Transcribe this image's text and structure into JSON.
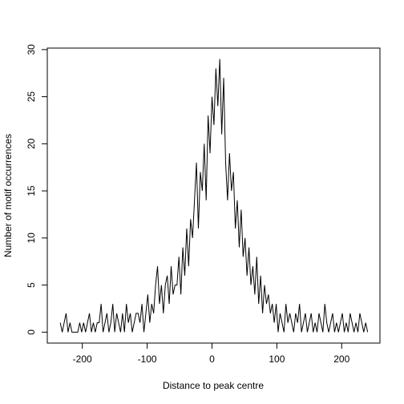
{
  "chart_data": {
    "type": "line",
    "x_label": "Distance to peak centre",
    "y_label": "Number of motif occurrences",
    "x": [
      -234,
      -231,
      -228,
      -225,
      -222,
      -219,
      -216,
      -213,
      -210,
      -207,
      -204,
      -201,
      -198,
      -195,
      -192,
      -189,
      -186,
      -183,
      -180,
      -177,
      -174,
      -171,
      -168,
      -165,
      -162,
      -159,
      -156,
      -153,
      -150,
      -147,
      -144,
      -141,
      -138,
      -135,
      -132,
      -129,
      -126,
      -123,
      -120,
      -117,
      -114,
      -111,
      -108,
      -105,
      -102,
      -99,
      -96,
      -93,
      -90,
      -87,
      -84,
      -81,
      -78,
      -75,
      -72,
      -69,
      -66,
      -63,
      -60,
      -57,
      -54,
      -51,
      -48,
      -45,
      -42,
      -39,
      -36,
      -33,
      -30,
      -27,
      -24,
      -21,
      -18,
      -15,
      -12,
      -9,
      -6,
      -3,
      0,
      3,
      6,
      9,
      12,
      15,
      18,
      21,
      24,
      27,
      30,
      33,
      36,
      39,
      42,
      45,
      48,
      51,
      54,
      57,
      60,
      63,
      66,
      69,
      72,
      75,
      78,
      81,
      84,
      87,
      90,
      93,
      96,
      99,
      102,
      105,
      108,
      111,
      114,
      117,
      120,
      123,
      126,
      129,
      132,
      135,
      138,
      141,
      144,
      147,
      150,
      153,
      156,
      159,
      162,
      165,
      168,
      171,
      174,
      177,
      180,
      183,
      186,
      189,
      192,
      195,
      198,
      201,
      204,
      207,
      210,
      213,
      216,
      219,
      222,
      225,
      228,
      231,
      234,
      237,
      240
    ],
    "values": [
      1,
      0,
      1,
      2,
      0,
      1,
      0,
      0,
      0,
      0,
      1,
      0,
      1,
      0,
      1,
      2,
      0,
      1,
      0,
      1,
      1,
      3,
      0,
      1,
      2,
      0,
      1,
      3,
      0,
      2,
      1,
      0,
      2,
      0,
      3,
      1,
      2,
      0,
      1,
      2,
      2,
      1,
      3,
      0,
      2,
      4,
      1,
      3,
      2,
      5,
      7,
      3,
      5,
      2,
      5,
      6,
      3,
      7,
      4,
      5,
      5,
      8,
      4,
      9,
      6,
      11,
      7,
      12,
      10,
      14,
      18,
      11,
      17,
      15,
      20,
      14,
      23,
      19,
      25,
      22,
      28,
      24,
      29,
      21,
      27,
      18,
      14,
      19,
      15,
      17,
      11,
      14,
      9,
      13,
      8,
      10,
      6,
      9,
      5,
      7,
      4,
      8,
      3,
      6,
      2,
      5,
      3,
      4,
      2,
      3,
      1,
      3,
      0,
      2,
      1,
      0,
      3,
      1,
      2,
      1,
      0,
      2,
      1,
      3,
      0,
      1,
      2,
      0,
      1,
      2,
      0,
      1,
      0,
      2,
      1,
      0,
      3,
      1,
      0,
      1,
      2,
      0,
      1,
      0,
      1,
      2,
      0,
      1,
      0,
      2,
      1,
      0,
      1,
      0,
      2,
      1,
      0,
      1,
      0
    ],
    "color": "#000000",
    "xlim": [
      -254,
      259
    ],
    "ylim": [
      -1.16,
      30.16
    ],
    "xticks": [
      -200,
      -100,
      0,
      100,
      200
    ],
    "yticks": [
      0,
      5,
      10,
      15,
      20,
      25,
      30
    ]
  }
}
